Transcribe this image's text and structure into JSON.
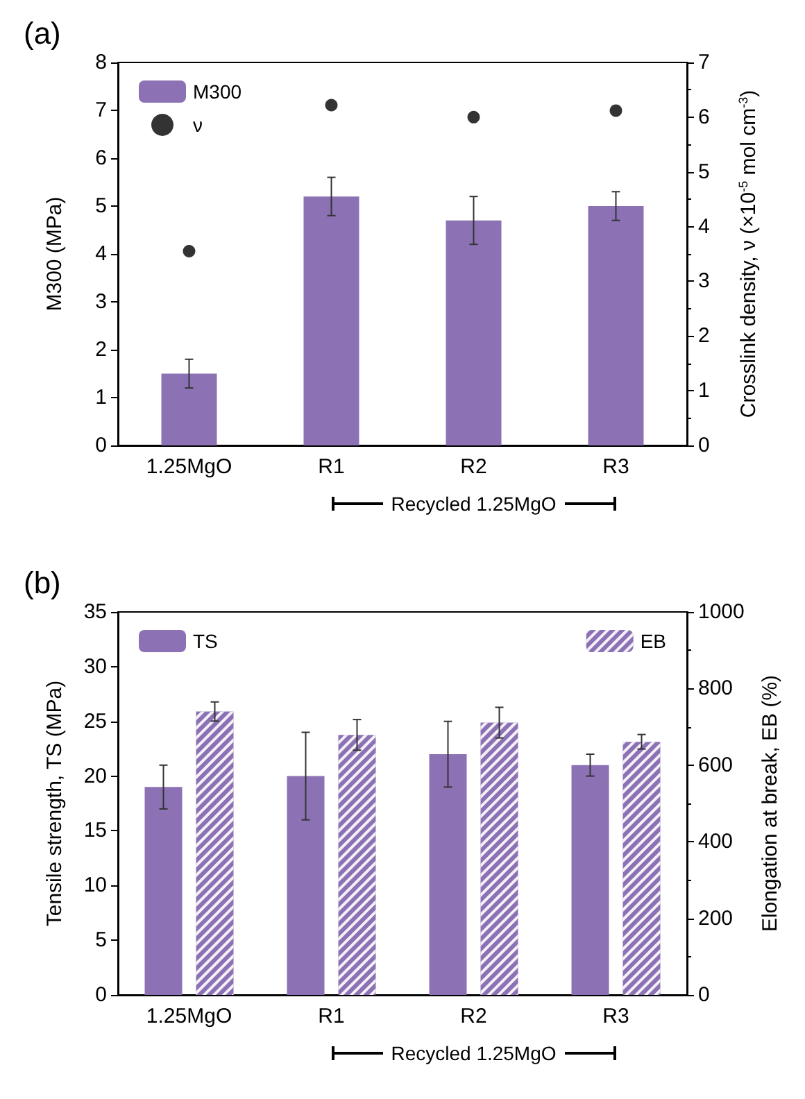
{
  "chart_data": [
    {
      "type": "bar",
      "title": "(a)",
      "categories": [
        "1.25MgO",
        "R1",
        "R2",
        "R3"
      ],
      "ylabel": "M300 (MPa)",
      "y2label": "Crosslink density, ν (×10$^{-5}$ mol cm$^{-3}$)",
      "series": [
        {
          "name": "M300",
          "type": "bar",
          "color": "#8c72b4",
          "values": [
            1.5,
            5.2,
            4.7,
            5.0
          ],
          "errors": [
            0.3,
            0.4,
            0.5,
            0.3
          ]
        },
        {
          "name": "ν",
          "type": "scatter",
          "axis": "y2",
          "color": "#000000",
          "values": [
            3.55,
            6.22,
            6.0,
            6.12
          ],
          "errors": [
            null,
            0.06,
            0.05,
            0.06
          ]
        }
      ],
      "ylim": [
        0,
        8
      ],
      "yticks": [
        0,
        1,
        2,
        3,
        4,
        5,
        6,
        7,
        8
      ],
      "y2lim": [
        0,
        7
      ],
      "y2ticks": [
        0,
        1,
        2,
        3,
        4,
        5,
        6,
        7
      ],
      "legend": "top left",
      "marker": "circle",
      "grid": false,
      "annotations": [
        "Recycled 1.25MgO"
      ]
    },
    {
      "type": "bar",
      "title": "(b)",
      "categories": [
        "1.25MgO",
        "R1",
        "R2",
        "R3"
      ],
      "ylabel": "Tensile strength, TS (MPa)",
      "y2label": "Elongation at break, EB (%)",
      "series": [
        {
          "name": "TS",
          "type": "bar",
          "color": "#8c72b4",
          "values": [
            19,
            20,
            22,
            21
          ],
          "errors": [
            2,
            4,
            3,
            1
          ]
        },
        {
          "name": "EB",
          "type": "bar",
          "axis": "y2",
          "color": "#8c72b4",
          "values": [
            740,
            679,
            711,
            661
          ],
          "errors": [
            25,
            40,
            40,
            19
          ]
        }
      ],
      "ylim": [
        0,
        35
      ],
      "yticks": [
        0,
        5,
        10,
        15,
        20,
        25,
        30,
        35
      ],
      "y2lim": [
        0,
        1000
      ],
      "y2ticks": [
        0,
        200,
        400,
        600,
        800,
        1000
      ],
      "legend": "top",
      "grid": false,
      "annotations": [
        "Recycled 1.25MgO"
      ]
    }
  ]
}
